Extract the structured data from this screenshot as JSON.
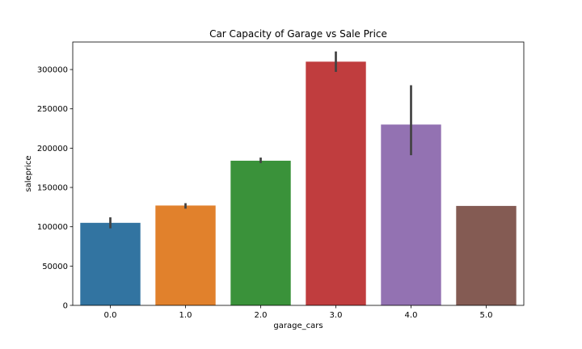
{
  "chart_data": {
    "type": "bar",
    "title": "Car Capacity of Garage vs Sale Price",
    "xlabel": "garage_cars",
    "ylabel": "saleprice",
    "categories": [
      "0.0",
      "1.0",
      "2.0",
      "3.0",
      "4.0",
      "5.0"
    ],
    "values": [
      105000,
      127000,
      184000,
      310000,
      230000,
      126500
    ],
    "error_bars": [
      [
        98000,
        112000
      ],
      [
        123000,
        130000
      ],
      [
        181000,
        188000
      ],
      [
        297000,
        323000
      ],
      [
        191000,
        280000
      ],
      null
    ],
    "colors": [
      "#3274a1",
      "#e1812c",
      "#3a923a",
      "#c03d3e",
      "#9372b2",
      "#845b53"
    ],
    "error_color": "#424242",
    "ylim": [
      0,
      335000
    ],
    "yticks": [
      0,
      50000,
      100000,
      150000,
      200000,
      250000,
      300000
    ],
    "grid": false,
    "legend": false
  }
}
